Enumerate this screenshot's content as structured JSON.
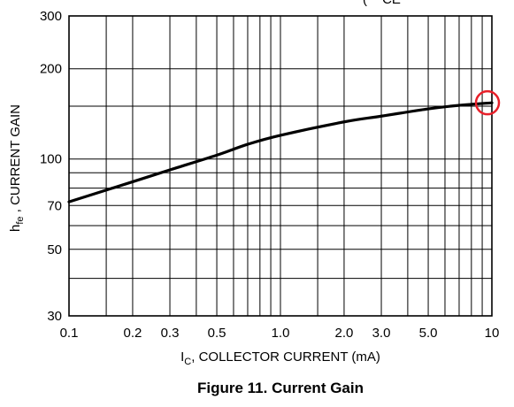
{
  "chart_data": {
    "type": "line",
    "caption": "Figure 11. Current Gain",
    "xlabel": {
      "main": "I",
      "sub": "C",
      "rest": ", COLLECTOR CURRENT (mA)"
    },
    "ylabel": {
      "main": "h",
      "sub": "fe",
      "rest": " , CURRENT GAIN"
    },
    "top_partial_text": "( − CE",
    "x_scale": "log",
    "y_scale": "log",
    "xlim": [
      0.1,
      10
    ],
    "ylim": [
      30,
      300
    ],
    "grid": true,
    "x_ticks": [
      {
        "value": 0.1,
        "label": "0.1"
      },
      {
        "value": 0.2,
        "label": "0.2"
      },
      {
        "value": 0.3,
        "label": "0.3"
      },
      {
        "value": 0.5,
        "label": "0.5"
      },
      {
        "value": 1.0,
        "label": "1.0"
      },
      {
        "value": 2.0,
        "label": "2.0"
      },
      {
        "value": 3.0,
        "label": "3.0"
      },
      {
        "value": 5.0,
        "label": "5.0"
      },
      {
        "value": 10,
        "label": "10"
      }
    ],
    "y_ticks": [
      {
        "value": 30,
        "label": "30"
      },
      {
        "value": 50,
        "label": "50"
      },
      {
        "value": 70,
        "label": "70"
      },
      {
        "value": 100,
        "label": "100"
      },
      {
        "value": 200,
        "label": "200"
      },
      {
        "value": 300,
        "label": "300"
      }
    ],
    "x_grid": [
      0.1,
      0.15,
      0.2,
      0.3,
      0.4,
      0.5,
      0.6,
      0.7,
      0.8,
      0.9,
      1,
      1.5,
      2,
      3,
      4,
      5,
      6,
      7,
      8,
      9,
      10
    ],
    "y_grid": [
      30,
      40,
      50,
      60,
      70,
      80,
      90,
      100,
      150,
      200,
      300
    ],
    "series": [
      {
        "x": [
          0.1,
          0.2,
          0.3,
          0.5,
          0.7,
          1.0,
          2.0,
          3.0,
          5.0,
          7.0,
          10
        ],
        "y": [
          72,
          84,
          92,
          103,
          112,
          120,
          133,
          139,
          147,
          151,
          154
        ]
      }
    ],
    "annotation": {
      "type": "circle",
      "color": "#e8202a",
      "x": 10,
      "y": 154
    }
  }
}
